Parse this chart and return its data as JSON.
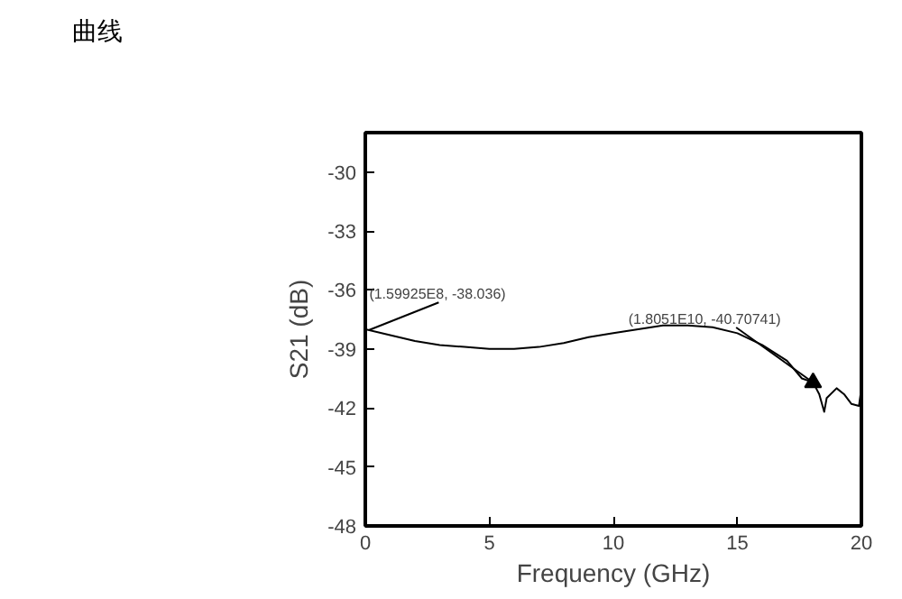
{
  "chart_data": {
    "type": "line",
    "title": "曲线",
    "xlabel": "Frequency (GHz)",
    "ylabel": "S21 (dB)",
    "x": [
      0,
      1,
      2,
      3,
      4,
      5,
      6,
      7,
      8,
      9,
      10,
      11,
      12,
      13,
      14,
      15,
      16,
      17,
      17.6,
      18.05,
      18.3,
      18.5,
      18.6,
      19,
      19.3,
      19.6,
      19.9,
      20
    ],
    "series": [
      {
        "color": "#000000",
        "values": [
          -38.0,
          -38.3,
          -38.6,
          -38.8,
          -38.9,
          -39.0,
          -39.0,
          -38.9,
          -38.7,
          -38.4,
          -38.2,
          -38.0,
          -37.8,
          -37.8,
          -37.9,
          -38.2,
          -38.8,
          -39.6,
          -40.5,
          -40.7,
          -41.3,
          -42.2,
          -41.5,
          -41.0,
          -41.3,
          -41.8,
          -41.9,
          -41.0
        ]
      }
    ],
    "xlim": [
      0,
      20
    ],
    "ylim": [
      -48,
      -28
    ],
    "xticks": [
      0,
      5,
      10,
      15,
      20
    ],
    "yticks": [
      -48,
      -45,
      -42,
      -39,
      -36,
      -33,
      -30
    ],
    "annotations": [
      {
        "text": "(1.59925E8, -38.036)",
        "x": 0.159925,
        "y": -38.036
      },
      {
        "text": "(1.8051E10, -40.70741)",
        "x": 18.051,
        "y": -40.70741
      }
    ],
    "grid": false,
    "marker": "none",
    "line_style": "solid"
  }
}
